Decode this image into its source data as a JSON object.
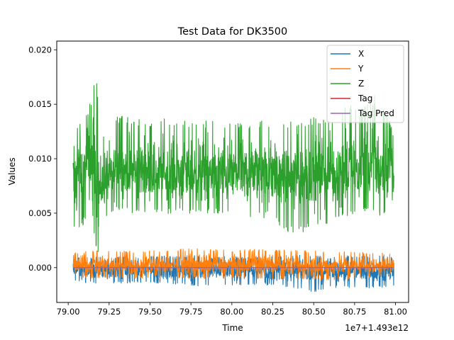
{
  "chart_data": {
    "type": "line",
    "title": "Test Data for DK3500",
    "xlabel": "Time",
    "ylabel": "Values",
    "x_offset_label": "1e7+1.493e12",
    "xlim": [
      78.93,
      81.08
    ],
    "ylim": [
      -0.0032,
      0.0208
    ],
    "x_range": [
      79.03,
      80.99
    ],
    "x_ticks": [
      79.0,
      79.25,
      79.5,
      79.75,
      80.0,
      80.25,
      80.5,
      80.75,
      81.0
    ],
    "x_tick_labels": [
      "79.00",
      "79.25",
      "79.50",
      "79.75",
      "80.00",
      "80.25",
      "80.50",
      "80.75",
      "81.00"
    ],
    "y_ticks": [
      0.0,
      0.005,
      0.01,
      0.015,
      0.02
    ],
    "y_tick_labels": [
      "0.000",
      "0.005",
      "0.010",
      "0.015",
      "0.020"
    ],
    "grid": false,
    "legend_position": "upper right",
    "series": [
      {
        "name": "Z",
        "color": "#2ca02c",
        "style": "noisy-band",
        "x": [
          79.03,
          79.08,
          79.12,
          79.15,
          79.17,
          79.19,
          79.22,
          79.3,
          79.4,
          79.5,
          79.6,
          79.7,
          79.8,
          79.9,
          80.0,
          80.1,
          80.2,
          80.25,
          80.3,
          80.4,
          80.5,
          80.6,
          80.7,
          80.8,
          80.9,
          80.99
        ],
        "upper": [
          0.0128,
          0.0135,
          0.0145,
          0.0165,
          0.0193,
          0.0125,
          0.0122,
          0.014,
          0.0138,
          0.0135,
          0.0137,
          0.0135,
          0.0136,
          0.0134,
          0.0135,
          0.0133,
          0.0135,
          0.0137,
          0.0133,
          0.0135,
          0.0138,
          0.0136,
          0.015,
          0.0148,
          0.0162,
          0.0125
        ],
        "lower": [
          0.0034,
          0.0036,
          0.0045,
          0.004,
          0.0018,
          0.0012,
          0.0042,
          0.0052,
          0.005,
          0.0051,
          0.0049,
          0.005,
          0.0048,
          0.005,
          0.0046,
          0.0044,
          0.0045,
          0.0048,
          0.0036,
          0.0028,
          0.0038,
          0.004,
          0.0047,
          0.005,
          0.0046,
          0.0046
        ],
        "mean": [
          0.0085,
          0.0088,
          0.0092,
          0.0095,
          0.009,
          0.0072,
          0.0082,
          0.0088,
          0.0087,
          0.0088,
          0.0086,
          0.0087,
          0.0086,
          0.0087,
          0.0085,
          0.0086,
          0.0087,
          0.0086,
          0.0084,
          0.0082,
          0.0086,
          0.0087,
          0.0089,
          0.0088,
          0.009,
          0.0085
        ]
      },
      {
        "name": "X",
        "color": "#1f77b4",
        "style": "noisy-band",
        "x": [
          79.03,
          79.2,
          79.4,
          79.6,
          79.8,
          80.0,
          80.2,
          80.4,
          80.5,
          80.6,
          80.8,
          80.99
        ],
        "upper": [
          0.0009,
          0.001,
          0.001,
          0.0011,
          0.0011,
          0.001,
          0.001,
          0.0012,
          0.0011,
          0.001,
          0.0012,
          0.001
        ],
        "lower": [
          -0.0013,
          -0.0015,
          -0.0014,
          -0.0015,
          -0.0017,
          -0.0016,
          -0.0016,
          -0.0019,
          -0.0023,
          -0.0018,
          -0.002,
          -0.0017
        ],
        "mean": [
          -0.0002,
          -0.0002,
          -0.0002,
          -0.0002,
          -0.0003,
          -0.0003,
          -0.0003,
          -0.0003,
          -0.0004,
          -0.0003,
          -0.0003,
          -0.0003
        ]
      },
      {
        "name": "Y",
        "color": "#ff7f0e",
        "style": "noisy-band",
        "x": [
          79.03,
          79.2,
          79.4,
          79.6,
          79.8,
          80.0,
          80.2,
          80.4,
          80.6,
          80.8,
          80.99
        ],
        "upper": [
          0.0014,
          0.0016,
          0.0015,
          0.0016,
          0.0018,
          0.0016,
          0.0017,
          0.0016,
          0.0015,
          0.0014,
          0.0013
        ],
        "lower": [
          -0.0009,
          -0.001,
          -0.001,
          -0.0011,
          -0.001,
          -0.001,
          -0.001,
          -0.0011,
          -0.0012,
          -0.001,
          -0.0009
        ],
        "mean": [
          0.0002,
          0.0003,
          0.0002,
          0.0003,
          0.0003,
          0.0002,
          0.0003,
          0.0002,
          0.0002,
          0.0002,
          0.0002
        ]
      },
      {
        "name": "Tag",
        "color": "#d62728",
        "style": "line",
        "x": [
          79.03,
          80.99
        ],
        "values": [
          0.0,
          0.0
        ]
      },
      {
        "name": "Tag Pred",
        "color": "#9467bd",
        "style": "line",
        "x": [
          79.03,
          80.99
        ],
        "values": [
          0.0,
          0.0
        ]
      }
    ],
    "legend": [
      {
        "name": "X",
        "color": "#1f77b4"
      },
      {
        "name": "Y",
        "color": "#ff7f0e"
      },
      {
        "name": "Z",
        "color": "#2ca02c"
      },
      {
        "name": "Tag",
        "color": "#d62728"
      },
      {
        "name": "Tag Pred",
        "color": "#9467bd"
      }
    ]
  }
}
